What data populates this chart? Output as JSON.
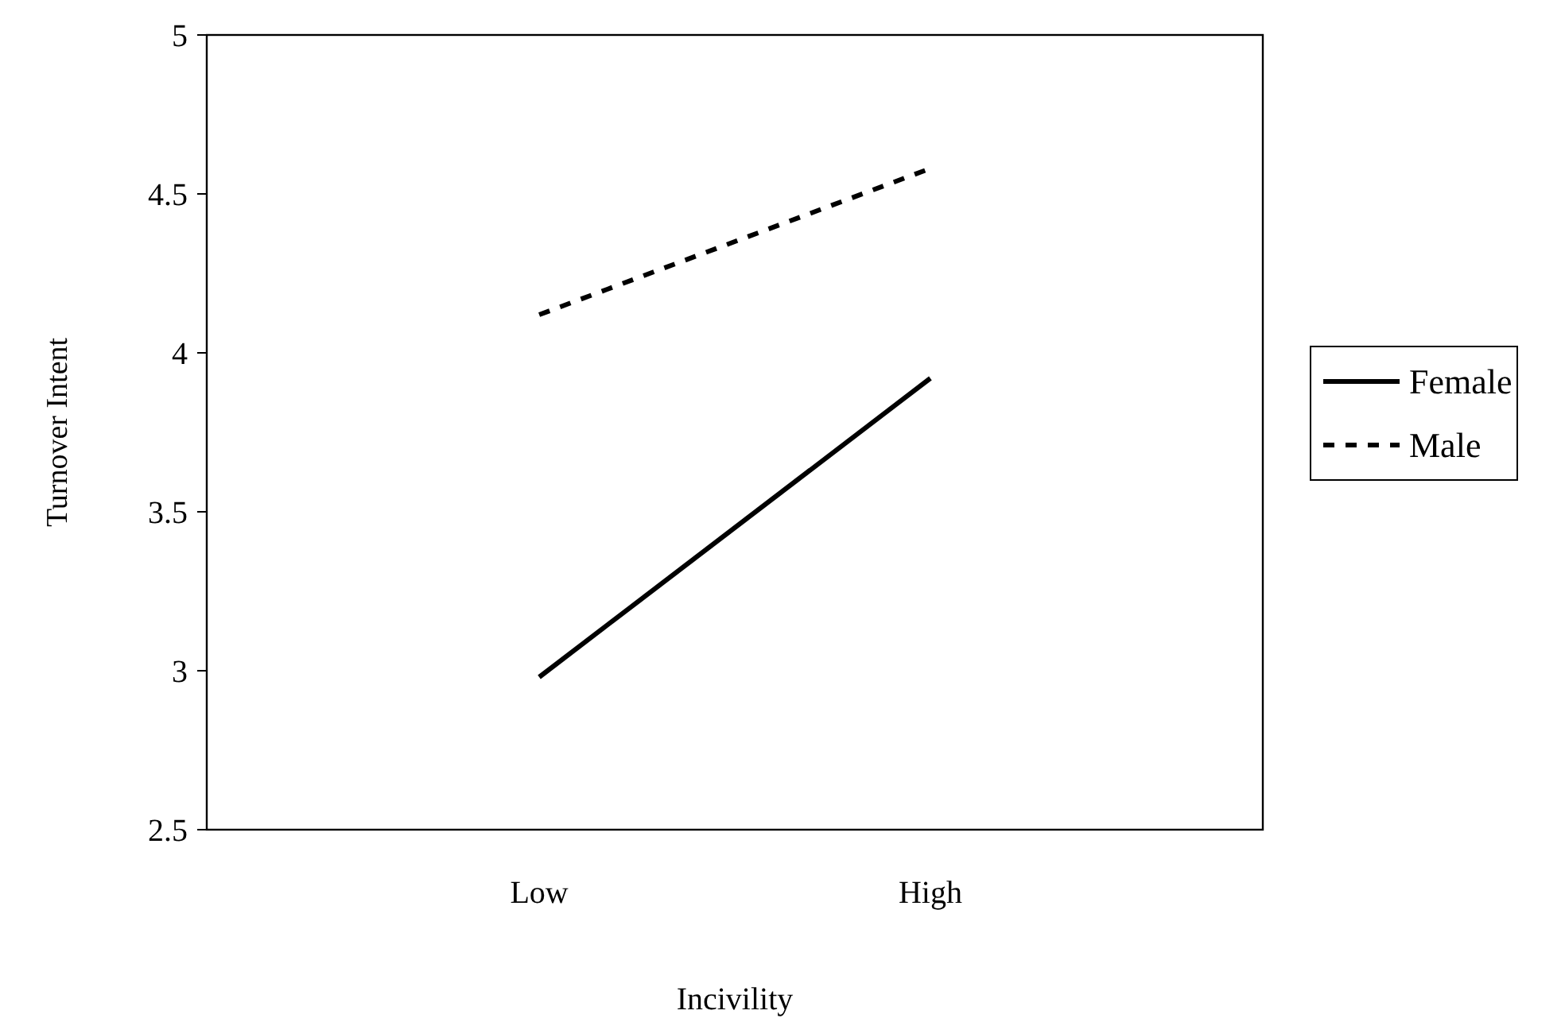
{
  "chart_data": {
    "type": "line",
    "xlabel": "Incivility",
    "ylabel": "Turnover Intent",
    "categories": [
      "Low",
      "High"
    ],
    "series": [
      {
        "name": "Female",
        "color": "#000000",
        "values": [
          2.98,
          3.92
        ],
        "line_style": "solid"
      },
      {
        "name": "Male",
        "color": "#000000",
        "values": [
          4.12,
          4.58
        ],
        "line_style": "dashed"
      }
    ],
    "ylim": [
      2.5,
      5
    ],
    "yticks": [
      2.5,
      3,
      3.5,
      4,
      4.5,
      5
    ],
    "grid": false,
    "legend": "right",
    "marker": "none"
  }
}
